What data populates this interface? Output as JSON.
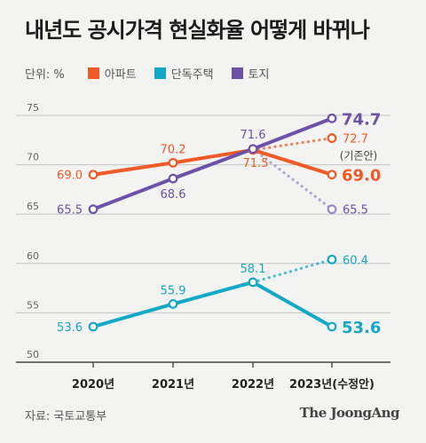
{
  "header": {
    "title": "내년도 공시가격 현실화율 어떻게 바뀌나"
  },
  "legend": {
    "unit": "단위: %",
    "items": [
      {
        "label": "아파트",
        "color": "#f05a28"
      },
      {
        "label": "단독주택",
        "color": "#13a8c6"
      },
      {
        "label": "토지",
        "color": "#6b52a8"
      }
    ]
  },
  "footer": {
    "source": "자료: 국토교통부",
    "brand": "The JoongAng"
  },
  "chart_data": {
    "type": "line",
    "categories": [
      "2020년",
      "2021년",
      "2022년",
      "2023년(수정안)"
    ],
    "ylim": [
      50,
      75
    ],
    "yticks": [
      50,
      55,
      60,
      65,
      70,
      75
    ],
    "grid": true,
    "series": [
      {
        "name": "아파트",
        "color": "#f05a28",
        "values": [
          69.0,
          70.2,
          71.5,
          69.0
        ],
        "value_labels": [
          "69.0",
          "70.2",
          "71.5",
          "69.0"
        ],
        "original_plan": {
          "value": 72.7,
          "label": "72.7",
          "note": "(기존안)"
        }
      },
      {
        "name": "단독주택",
        "color": "#13a8c6",
        "values": [
          53.6,
          55.9,
          58.1,
          53.6
        ],
        "value_labels": [
          "53.6",
          "55.9",
          "58.1",
          "53.6"
        ],
        "original_plan": {
          "value": 60.4,
          "label": "60.4"
        }
      },
      {
        "name": "토지",
        "color": "#6b52a8",
        "values": [
          65.5,
          68.6,
          71.6,
          74.7
        ],
        "value_labels": [
          "65.5",
          "68.6",
          "71.6",
          "74.7"
        ],
        "original_plan": {
          "value": 65.5,
          "label": "65.5",
          "color": "#9a8ac9"
        }
      }
    ]
  }
}
